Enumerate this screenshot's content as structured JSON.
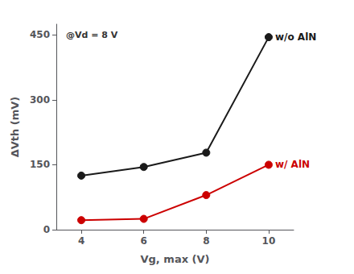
{
  "chart_data": {
    "type": "line",
    "xlabel": "Vg, max (V)",
    "ylabel": "ΔVth (mV)",
    "annotation": "@Vd = 8 V",
    "x": [
      4,
      6,
      8,
      10
    ],
    "series": [
      {
        "name": "w/o AlN",
        "color": "#1a1a1a",
        "marker": "circle",
        "values": [
          125,
          145,
          178,
          445
        ]
      },
      {
        "name": "w/ AlN",
        "color": "#cc0000",
        "marker": "circle",
        "values": [
          22,
          25,
          80,
          150
        ]
      }
    ],
    "xlim": [
      3.2,
      10.8
    ],
    "ylim": [
      0,
      475
    ],
    "xticks": [
      4,
      6,
      8,
      10
    ],
    "yticks": [
      0,
      150,
      300,
      450
    ],
    "grid": false
  }
}
